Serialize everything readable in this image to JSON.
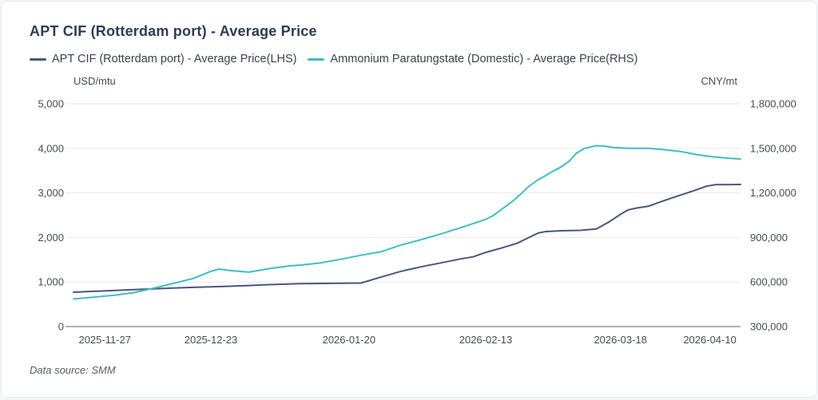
{
  "header": {
    "title": "APT CIF (Rotterdam port) - Average Price"
  },
  "legend": [
    {
      "label": "APT CIF (Rotterdam port) - Average Price(LHS)",
      "color": "#46587a"
    },
    {
      "label": "Ammonium Paratungstate (Domestic) - Average Price(RHS)",
      "color": "#3cbec7"
    }
  ],
  "footer": {
    "text": "Data source:  SMM"
  },
  "colors": {
    "grid": "#e9e9ef",
    "axis_line": "#60646c",
    "tick_text": "#474b52",
    "series_lhs": "#46587a",
    "series_rhs": "#3cbec7"
  },
  "chart_data": {
    "type": "line",
    "title": "APT CIF (Rotterdam port) - Average Price",
    "grid": true,
    "legend_position": "top",
    "left_axis": {
      "unit": "USD/mtu",
      "min": 0,
      "max": 5000,
      "ticks": [
        {
          "v": 0,
          "label": "0"
        },
        {
          "v": 1000,
          "label": "1,000"
        },
        {
          "v": 2000,
          "label": "2,000"
        },
        {
          "v": 3000,
          "label": "3,000"
        },
        {
          "v": 4000,
          "label": "4,000"
        },
        {
          "v": 5000,
          "label": "5,000"
        }
      ]
    },
    "right_axis": {
      "unit": "CNY/mt",
      "min": 300000,
      "max": 1800000,
      "ticks": [
        {
          "v": 300000,
          "label": "300,000"
        },
        {
          "v": 600000,
          "label": "600,000"
        },
        {
          "v": 900000,
          "label": "900,000"
        },
        {
          "v": 1200000,
          "label": "1,200,000"
        },
        {
          "v": 1500000,
          "label": "1,500,000"
        },
        {
          "v": 1800000,
          "label": "1,800,000"
        }
      ]
    },
    "x_ticks": [
      {
        "label": "2025-11-27",
        "pos": 0.047
      },
      {
        "label": "2025-12-23",
        "pos": 0.206
      },
      {
        "label": "2026-01-20",
        "pos": 0.413
      },
      {
        "label": "2026-02-13",
        "pos": 0.618
      },
      {
        "label": "2026-03-18",
        "pos": 0.82
      },
      {
        "label": "2026-04-10",
        "pos": 0.954
      }
    ],
    "series": [
      {
        "name": "APT CIF (Rotterdam port) - Average Price(LHS)",
        "axis": "left",
        "color": "#46587a",
        "points": [
          [
            0.0,
            770
          ],
          [
            0.03,
            790
          ],
          [
            0.06,
            808
          ],
          [
            0.09,
            828
          ],
          [
            0.12,
            848
          ],
          [
            0.15,
            866
          ],
          [
            0.18,
            880
          ],
          [
            0.206,
            892
          ],
          [
            0.234,
            905
          ],
          [
            0.263,
            922
          ],
          [
            0.293,
            940
          ],
          [
            0.323,
            955
          ],
          [
            0.341,
            962
          ],
          [
            0.371,
            968
          ],
          [
            0.401,
            972
          ],
          [
            0.431,
            976
          ],
          [
            0.461,
            1110
          ],
          [
            0.491,
            1240
          ],
          [
            0.521,
            1340
          ],
          [
            0.551,
            1430
          ],
          [
            0.581,
            1520
          ],
          [
            0.599,
            1565
          ],
          [
            0.617,
            1660
          ],
          [
            0.641,
            1760
          ],
          [
            0.665,
            1870
          ],
          [
            0.683,
            2000
          ],
          [
            0.697,
            2100
          ],
          [
            0.707,
            2130
          ],
          [
            0.731,
            2150
          ],
          [
            0.76,
            2160
          ],
          [
            0.784,
            2190
          ],
          [
            0.802,
            2340
          ],
          [
            0.82,
            2520
          ],
          [
            0.832,
            2620
          ],
          [
            0.844,
            2660
          ],
          [
            0.862,
            2700
          ],
          [
            0.88,
            2800
          ],
          [
            0.898,
            2890
          ],
          [
            0.916,
            2980
          ],
          [
            0.934,
            3070
          ],
          [
            0.949,
            3150
          ],
          [
            0.962,
            3185
          ],
          [
            0.982,
            3185
          ],
          [
            1.0,
            3190
          ]
        ]
      },
      {
        "name": "Ammonium Paratungstate (Domestic) - Average Price(RHS)",
        "axis": "right",
        "color": "#3cbec7",
        "points": [
          [
            0.0,
            486000
          ],
          [
            0.03,
            498000
          ],
          [
            0.06,
            510000
          ],
          [
            0.09,
            528000
          ],
          [
            0.12,
            558000
          ],
          [
            0.15,
            591000
          ],
          [
            0.18,
            624000
          ],
          [
            0.206,
            672000
          ],
          [
            0.218,
            687000
          ],
          [
            0.234,
            678000
          ],
          [
            0.263,
            666000
          ],
          [
            0.293,
            690000
          ],
          [
            0.323,
            708000
          ],
          [
            0.341,
            714000
          ],
          [
            0.371,
            729000
          ],
          [
            0.401,
            753000
          ],
          [
            0.431,
            780000
          ],
          [
            0.461,
            804000
          ],
          [
            0.491,
            849000
          ],
          [
            0.521,
            885000
          ],
          [
            0.551,
            924000
          ],
          [
            0.581,
            966000
          ],
          [
            0.599,
            993000
          ],
          [
            0.617,
            1020000
          ],
          [
            0.629,
            1047000
          ],
          [
            0.641,
            1086000
          ],
          [
            0.659,
            1146000
          ],
          [
            0.671,
            1194000
          ],
          [
            0.683,
            1245000
          ],
          [
            0.695,
            1284000
          ],
          [
            0.707,
            1314000
          ],
          [
            0.719,
            1347000
          ],
          [
            0.731,
            1374000
          ],
          [
            0.743,
            1413000
          ],
          [
            0.754,
            1467000
          ],
          [
            0.766,
            1500000
          ],
          [
            0.783,
            1518000
          ],
          [
            0.796,
            1515000
          ],
          [
            0.808,
            1506000
          ],
          [
            0.832,
            1500000
          ],
          [
            0.862,
            1500000
          ],
          [
            0.886,
            1491000
          ],
          [
            0.91,
            1479000
          ],
          [
            0.934,
            1458000
          ],
          [
            0.958,
            1443000
          ],
          [
            0.982,
            1434000
          ],
          [
            1.0,
            1428000
          ]
        ]
      }
    ]
  }
}
